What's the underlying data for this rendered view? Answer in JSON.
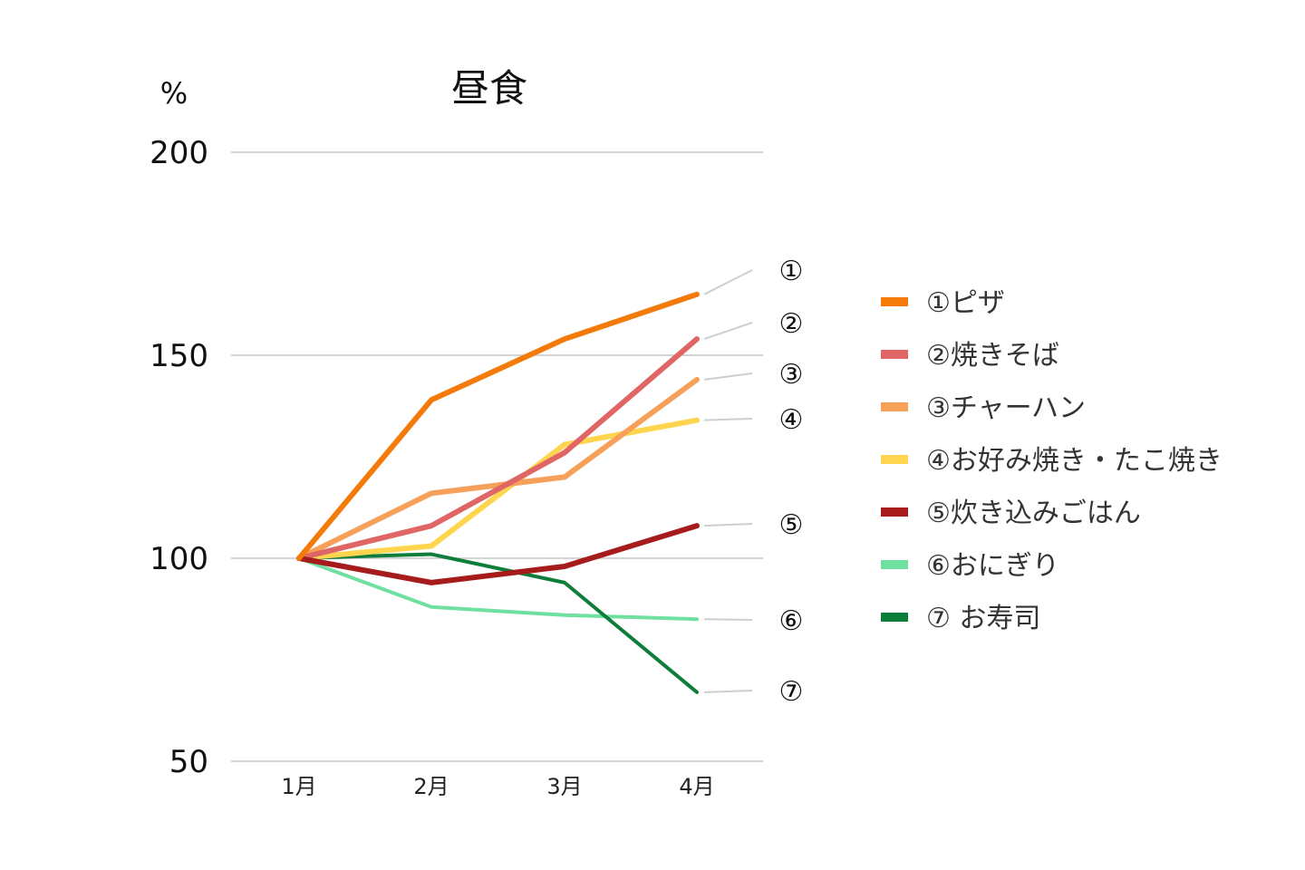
{
  "chart_data": {
    "type": "line",
    "title": "昼食",
    "unit_label": "%",
    "xlabel": "",
    "ylabel": "",
    "categories": [
      "1月",
      "2月",
      "3月",
      "4月"
    ],
    "ylim": [
      50,
      200
    ],
    "yticks": [
      "200",
      "150",
      "100",
      "50"
    ],
    "grid": true,
    "legend_position": "right",
    "series": [
      {
        "name": "①ピザ",
        "marker": "①",
        "color": "#F47B0A",
        "values": [
          100,
          139,
          154,
          165
        ]
      },
      {
        "name": "②焼きそば",
        "marker": "②",
        "color": "#E06666",
        "values": [
          100,
          108,
          126,
          154
        ]
      },
      {
        "name": "③チャーハン",
        "marker": "③",
        "color": "#F6A05A",
        "values": [
          100,
          116,
          120,
          144
        ]
      },
      {
        "name": "④お好み焼き・たこ焼き",
        "marker": "④",
        "color": "#FFD54F",
        "values": [
          100,
          103,
          128,
          134
        ]
      },
      {
        "name": "⑤炊き込みごはん",
        "marker": "⑤",
        "color": "#A61C1C",
        "values": [
          100,
          94,
          98,
          108
        ]
      },
      {
        "name": "⑥おにぎり",
        "marker": "⑥",
        "color": "#6FE0A0",
        "values": [
          100,
          88,
          86,
          85
        ]
      },
      {
        "name": "⑦ お寿司",
        "marker": "⑦",
        "color": "#0E7D3A",
        "values": [
          100,
          101,
          94,
          67
        ]
      }
    ]
  }
}
